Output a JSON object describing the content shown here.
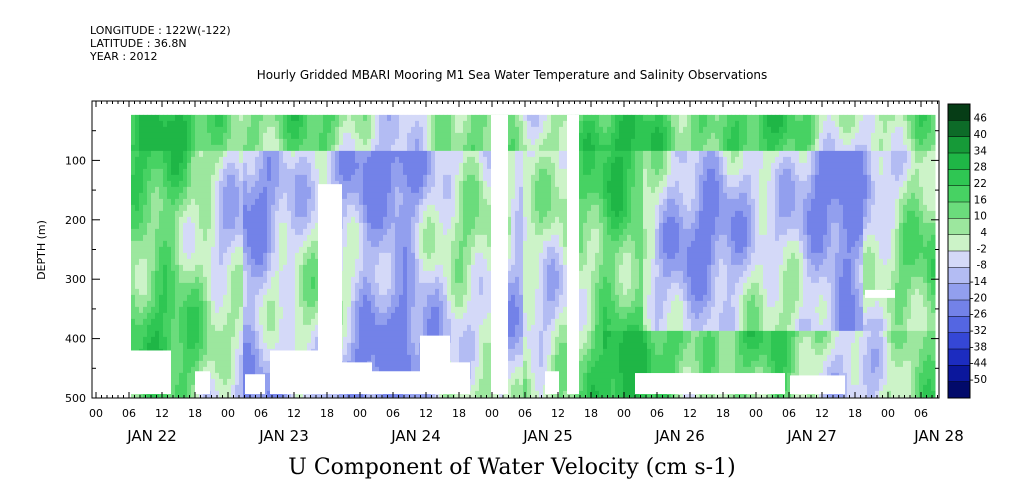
{
  "header": {
    "longitude": "LONGITUDE : 122W(-122)",
    "latitude": "LATITUDE : 36.8N",
    "year": "YEAR : 2012"
  },
  "chart_data": {
    "type": "heatmap",
    "title": "Hourly Gridded MBARI Mooring M1 Sea Water Temperature and Salinity Observations",
    "xlabel": "U Component of Water Velocity (cm s-1)",
    "ylabel": "DEPTH (m)",
    "ylim": [
      500,
      0
    ],
    "y_ticks": [
      100,
      200,
      300,
      400,
      500
    ],
    "x_hour_ticks": [
      "00",
      "06",
      "12",
      "18",
      "00",
      "06",
      "12",
      "18",
      "00",
      "06",
      "12",
      "18",
      "00",
      "06",
      "12",
      "18",
      "00",
      "06",
      "12",
      "18",
      "00",
      "06",
      "12",
      "18",
      "00",
      "06"
    ],
    "x_day_labels": [
      {
        "label": "JAN 22",
        "day_index": 0
      },
      {
        "label": "JAN 23",
        "day_index": 1
      },
      {
        "label": "JAN 24",
        "day_index": 2
      },
      {
        "label": "JAN 25",
        "day_index": 3
      },
      {
        "label": "JAN 26",
        "day_index": 4
      },
      {
        "label": "JAN 27",
        "day_index": 5
      },
      {
        "label": "JAN 28",
        "day_index": 6
      }
    ],
    "colorbar_levels": [
      "46",
      "40",
      "34",
      "28",
      "22",
      "16",
      "10",
      "4",
      "-2",
      "-8",
      "-14",
      "-20",
      "-26",
      "-32",
      "-38",
      "-44",
      "-50"
    ],
    "colorbar_colors": [
      "#063d16",
      "#0d6b28",
      "#169a38",
      "#1fb646",
      "#2fc653",
      "#47d263",
      "#6bdc7c",
      "#9ce79e",
      "#ccf3c8",
      "#d4d9f8",
      "#b3bcf3",
      "#929fee",
      "#7382e8",
      "#5466e2",
      "#3547d6",
      "#1c2cc0",
      "#0b179c",
      "#020a6a"
    ],
    "heatmap_rows": [
      {
        "depth_range": [
          20,
          100
        ],
        "pattern": "mostly green (positive) with blue patches mid-period"
      },
      {
        "depth_range": [
          100,
          300
        ],
        "pattern": "mixed green/blue, blue dominant Jan 23-24 and Jan 26-27"
      },
      {
        "depth_range": [
          300,
          490
        ],
        "pattern": "green near-surface bands, blue mid-column, light green at depth"
      }
    ],
    "grid": false
  }
}
